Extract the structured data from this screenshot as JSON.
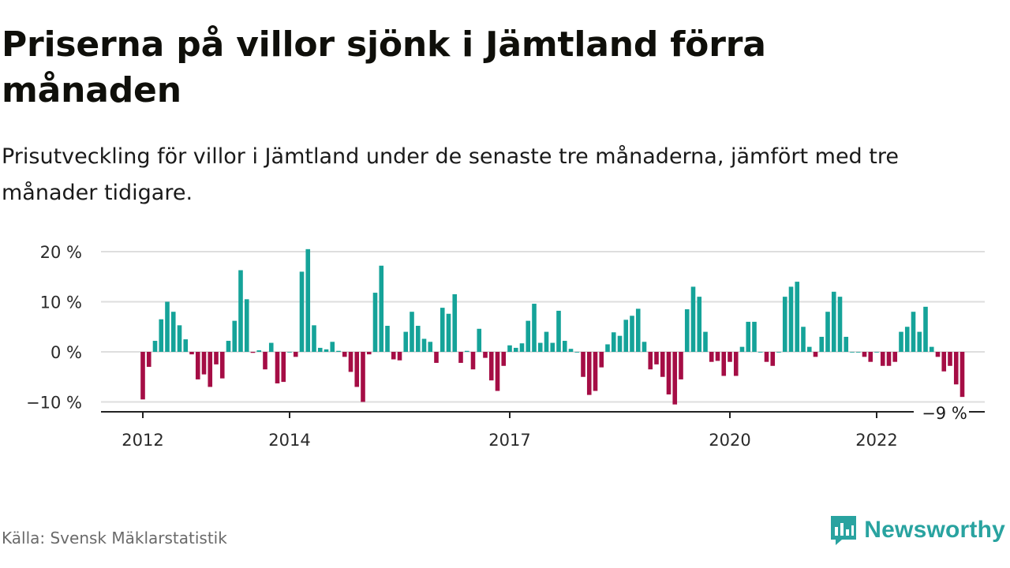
{
  "header": {
    "title": "Priserna på villor sjönk i Jämtland förra månaden",
    "subtitle": "Prisutveckling för villor i Jämtland under de senaste tre månaderna, jämfört med tre månader tidigare."
  },
  "footer": {
    "source": "Källa: Svensk Mäklarstatistik",
    "brand": "Newsworthy"
  },
  "colors": {
    "positive": "#15a399",
    "negative": "#a50d45",
    "grid": "#dedede",
    "axis": "#222222",
    "brand": "#29a3a0"
  },
  "chart_data": {
    "type": "bar",
    "title": "",
    "xlabel": "",
    "ylabel": "",
    "ylim": [
      -12,
      22
    ],
    "y_ticks": [
      20,
      10,
      0,
      -10
    ],
    "y_tick_labels": [
      "20 %",
      "10 %",
      "0 %",
      "−10 %"
    ],
    "x_ticks": [
      {
        "label": "2012",
        "x": "2012-01"
      },
      {
        "label": "2014",
        "x": "2014-01"
      },
      {
        "label": "2017",
        "x": "2017-01"
      },
      {
        "label": "2020",
        "x": "2020-01"
      },
      {
        "label": "2022",
        "x": "2022-01"
      }
    ],
    "grid": true,
    "last_value_label": "−9 %",
    "series": [
      {
        "x": [
          "2012-01",
          "2012-02",
          "2012-03",
          "2012-04",
          "2012-05",
          "2012-06",
          "2012-07",
          "2012-08",
          "2012-09",
          "2012-10",
          "2012-11",
          "2012-12",
          "2013-01",
          "2013-02",
          "2013-03",
          "2013-04",
          "2013-05",
          "2013-06",
          "2013-07",
          "2013-08",
          "2013-09",
          "2013-10",
          "2013-11",
          "2013-12",
          "2014-01",
          "2014-02",
          "2014-03",
          "2014-04",
          "2014-05",
          "2014-06",
          "2014-07",
          "2014-08",
          "2014-09",
          "2014-10",
          "2014-11",
          "2014-12",
          "2015-01",
          "2015-02",
          "2015-03",
          "2015-04",
          "2015-05",
          "2015-06",
          "2015-07",
          "2015-08",
          "2015-09",
          "2015-10",
          "2015-11",
          "2015-12",
          "2016-01",
          "2016-02",
          "2016-03",
          "2016-04",
          "2016-05",
          "2016-06",
          "2016-07",
          "2016-08",
          "2016-09",
          "2016-10",
          "2016-11",
          "2016-12",
          "2017-01",
          "2017-02",
          "2017-03",
          "2017-04",
          "2017-05",
          "2017-06",
          "2017-07",
          "2017-08",
          "2017-09",
          "2017-10",
          "2017-11",
          "2017-12",
          "2018-01",
          "2018-02",
          "2018-03",
          "2018-04",
          "2018-05",
          "2018-06",
          "2018-07",
          "2018-08",
          "2018-09",
          "2018-10",
          "2018-11",
          "2018-12",
          "2019-01",
          "2019-02",
          "2019-03",
          "2019-04",
          "2019-05",
          "2019-06",
          "2019-07",
          "2019-08",
          "2019-09",
          "2019-10",
          "2019-11",
          "2019-12",
          "2020-01",
          "2020-02",
          "2020-03",
          "2020-04",
          "2020-05",
          "2020-06",
          "2020-07",
          "2020-08",
          "2020-09",
          "2020-10",
          "2020-11",
          "2020-12",
          "2021-01",
          "2021-02",
          "2021-03",
          "2021-04",
          "2021-05",
          "2021-06",
          "2021-07",
          "2021-08",
          "2021-09",
          "2021-10",
          "2021-11",
          "2021-12",
          "2022-01",
          "2022-02",
          "2022-03",
          "2022-04",
          "2022-05",
          "2022-06",
          "2022-07",
          "2022-08",
          "2022-09",
          "2022-10",
          "2022-11",
          "2022-12"
        ],
        "values": [
          -9.5,
          -3,
          2.2,
          6.5,
          10,
          8,
          5.3,
          2.5,
          -0.5,
          -5.5,
          -4.5,
          -7,
          -2.5,
          -5.3,
          2.2,
          6.2,
          16.3,
          10.5,
          -0.2,
          0.3,
          -3.5,
          1.8,
          -6.3,
          -6,
          0,
          -1,
          16,
          20.5,
          5.3,
          0.8,
          0.5,
          2,
          0.2,
          -1,
          -4,
          -7,
          -10,
          -0.5,
          11.8,
          17.2,
          5.2,
          -1.5,
          -1.7,
          4,
          8,
          5.2,
          2.6,
          2,
          -2.2,
          8.8,
          7.6,
          11.5,
          -2.2,
          0.2,
          -3.5,
          4.6,
          -1.2,
          -5.7,
          -7.8,
          -2.8,
          1.3,
          0.8,
          1.7,
          6.2,
          9.6,
          1.8,
          4,
          1.8,
          8.2,
          2.2,
          0.6,
          0,
          -5,
          -8.6,
          -7.8,
          -3.1,
          1.5,
          3.9,
          3.2,
          6.4,
          7.2,
          8.6,
          2,
          -3.5,
          -2.5,
          -5,
          -8.5,
          -10.5,
          -5.5,
          8.5,
          13,
          11,
          4,
          -2,
          -1.8,
          -4.8,
          -2,
          -4.8,
          1,
          6,
          6,
          0,
          -2,
          -2.8,
          0,
          11,
          13,
          14,
          5,
          1,
          -1,
          3,
          8,
          12,
          11,
          3,
          0,
          0,
          -1,
          -2,
          0,
          -2.8,
          -2.8,
          -2,
          4,
          5,
          8,
          4,
          9,
          1,
          -1,
          -3.9
        ],
        "extra_x": [
          "2023-01",
          "2023-02",
          "2023-03"
        ],
        "extra_values": [
          -2.8,
          -6.5,
          -9
        ]
      }
    ]
  }
}
